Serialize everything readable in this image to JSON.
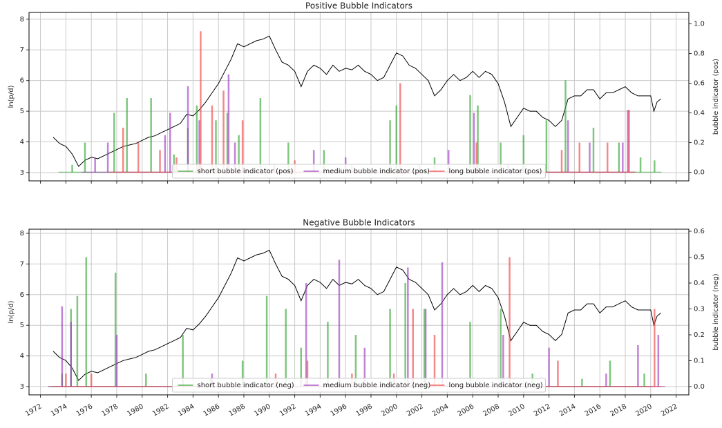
{
  "chart_data": [
    {
      "type": "line",
      "title": "Positive Bubble Indicators",
      "ylabel": "ln(p/d)",
      "y2label": "bubble indicator (pos)",
      "grid": true,
      "show_xtick_labels": false,
      "legend": "lower center",
      "xlim": [
        1971.1,
        2023.0
      ],
      "xticks": [
        1972,
        1974,
        1976,
        1978,
        1980,
        1982,
        1984,
        1986,
        1988,
        1990,
        1992,
        1994,
        1996,
        1998,
        2000,
        2002,
        2004,
        2006,
        2008,
        2010,
        2012,
        2014,
        2016,
        2018,
        2020,
        2022
      ],
      "ylim": [
        2.73,
        8.22
      ],
      "yticks": [
        3,
        4,
        5,
        6,
        7,
        8
      ],
      "y2lim": [
        -0.058,
        1.077
      ],
      "y2ticks": [
        {
          "value": 0,
          "label": "0.0"
        },
        0.2,
        0.4,
        0.6,
        0.8,
        {
          "value": 1,
          "label": "1.0"
        }
      ],
      "series": [
        {
          "color": "#000000",
          "style": "line",
          "x": [
            1973.0,
            1973.5,
            1974.0,
            1974.5,
            1975.0,
            1975.5,
            1976.0,
            1976.5,
            1977.0,
            1977.5,
            1978.0,
            1978.5,
            1979.0,
            1979.5,
            1980.0,
            1980.5,
            1981.0,
            1981.5,
            1982.0,
            1982.5,
            1983.0,
            1983.5,
            1984.0,
            1984.5,
            1985.0,
            1985.5,
            1986.0,
            1986.5,
            1987.0,
            1987.5,
            1988.0,
            1988.5,
            1989.0,
            1989.5,
            1990.0,
            1990.5,
            1991.0,
            1991.5,
            1992.0,
            1992.5,
            1993.0,
            1993.5,
            1994.0,
            1994.5,
            1995.0,
            1995.5,
            1996.0,
            1996.5,
            1997.0,
            1997.5,
            1998.0,
            1998.5,
            1999.0,
            1999.5,
            2000.0,
            2000.5,
            2001.0,
            2001.5,
            2002.0,
            2002.5,
            2003.0,
            2003.5,
            2004.0,
            2004.5,
            2005.0,
            2005.5,
            2006.0,
            2006.5,
            2007.0,
            2007.5,
            2008.0,
            2008.5,
            2009.0,
            2009.5,
            2010.0,
            2010.5,
            2011.0,
            2011.5,
            2012.0,
            2012.5,
            2013.0,
            2013.5,
            2014.0,
            2014.5,
            2015.0,
            2015.5,
            2016.0,
            2016.5,
            2017.0,
            2017.5,
            2018.0,
            2018.5,
            2019.0,
            2019.5,
            2020.0,
            2020.25,
            2020.5,
            2020.8
          ],
          "values": [
            4.15,
            3.95,
            3.85,
            3.6,
            3.2,
            3.4,
            3.5,
            3.45,
            3.55,
            3.65,
            3.75,
            3.85,
            3.9,
            3.95,
            4.05,
            4.15,
            4.2,
            4.3,
            4.4,
            4.5,
            4.6,
            4.9,
            4.85,
            5.05,
            5.3,
            5.6,
            5.9,
            6.3,
            6.7,
            7.2,
            7.1,
            7.2,
            7.3,
            7.35,
            7.45,
            7.0,
            6.6,
            6.5,
            6.3,
            5.8,
            6.3,
            6.5,
            6.4,
            6.2,
            6.5,
            6.3,
            6.4,
            6.35,
            6.5,
            6.3,
            6.2,
            6.0,
            6.1,
            6.5,
            6.9,
            6.8,
            6.5,
            6.4,
            6.2,
            6.0,
            5.5,
            5.7,
            6.0,
            6.2,
            6.0,
            6.1,
            6.3,
            6.1,
            6.3,
            6.2,
            5.9,
            5.3,
            4.5,
            4.8,
            5.1,
            5.0,
            5.0,
            4.8,
            4.7,
            4.5,
            4.7,
            5.4,
            5.5,
            5.5,
            5.7,
            5.7,
            5.4,
            5.6,
            5.6,
            5.7,
            5.8,
            5.6,
            5.5,
            5.5,
            5.5,
            5.0,
            5.3,
            5.4
          ]
        },
        {
          "name": "short bubble indicator (pos)",
          "color": "#3aa83a",
          "style": "spikes",
          "axis": "y2",
          "x": [
            1974.5,
            1975.5,
            1977.8,
            1978.8,
            1980.7,
            1982.5,
            1983.6,
            1984.3,
            1985.8,
            1986.7,
            1987.6,
            1989.3,
            1991.5,
            1994.3,
            1999.5,
            2000.0,
            2003.0,
            2005.8,
            2006.4,
            2008.2,
            2010.0,
            2011.8,
            2013.3,
            2015.5,
            2017.5,
            2019.2,
            2020.3
          ],
          "values": [
            0.05,
            0.2,
            0.4,
            0.5,
            0.5,
            0.12,
            0.3,
            0.45,
            0.35,
            0.4,
            0.25,
            0.5,
            0.2,
            0.15,
            0.35,
            0.45,
            0.1,
            0.52,
            0.45,
            0.2,
            0.25,
            0.35,
            0.62,
            0.3,
            0.2,
            0.1,
            0.08
          ]
        },
        {
          "name": "medium bubble indicator (pos)",
          "color": "#a040c0",
          "style": "spikes",
          "axis": "y2",
          "x": [
            1976.3,
            1977.3,
            1981.8,
            1982.2,
            1983.6,
            1984.5,
            1986.8,
            1987.3,
            1990.4,
            1993.5,
            1996.0,
            2001.8,
            2004.1,
            2006.1,
            2008.8,
            2013.5,
            2015.2,
            2017.8,
            2018.2
          ],
          "values": [
            0.1,
            0.2,
            0.25,
            0.4,
            0.58,
            0.35,
            0.66,
            0.2,
            0.05,
            0.15,
            0.1,
            0.05,
            0.15,
            0.4,
            0.05,
            0.35,
            0.2,
            0.2,
            0.42
          ]
        },
        {
          "name": "long bubble indicator (pos)",
          "color": "#f04848",
          "style": "spikes",
          "axis": "y2",
          "x": [
            1978.5,
            1979.7,
            1981.4,
            1982.7,
            1984.6,
            1985.5,
            1986.4,
            1987.9,
            1992.0,
            1996.5,
            2000.3,
            2006.3,
            2013.0,
            2014.4,
            2016.6,
            2018.3
          ],
          "values": [
            0.3,
            0.2,
            0.15,
            0.1,
            0.95,
            0.45,
            0.55,
            0.35,
            0.08,
            0.05,
            0.6,
            0.2,
            0.15,
            0.2,
            0.2,
            0.42
          ]
        }
      ]
    },
    {
      "type": "line",
      "title": "Negative Bubble Indicators",
      "ylabel": "ln(p/d)",
      "y2label": "bubble indicator (neg)",
      "grid": true,
      "show_xtick_labels": true,
      "legend": "lower center",
      "xlim": [
        1971.1,
        2023.0
      ],
      "xticks": [
        1972,
        1974,
        1976,
        1978,
        1980,
        1982,
        1984,
        1986,
        1988,
        1990,
        1992,
        1994,
        1996,
        1998,
        2000,
        2002,
        2004,
        2006,
        2008,
        2010,
        2012,
        2014,
        2016,
        2018,
        2020,
        2022
      ],
      "ylim": [
        2.73,
        8.135
      ],
      "yticks": [
        3,
        4,
        5,
        6,
        7,
        8
      ],
      "y2lim": [
        -0.032,
        0.608
      ],
      "y2ticks": [
        {
          "value": 0,
          "label": "0.0"
        },
        0.1,
        0.2,
        0.3,
        0.4,
        0.5,
        0.6
      ],
      "series": [
        {
          "color": "#000000",
          "style": "line",
          "x": [
            1973.0,
            1973.5,
            1974.0,
            1974.5,
            1975.0,
            1975.5,
            1976.0,
            1976.5,
            1977.0,
            1977.5,
            1978.0,
            1978.5,
            1979.0,
            1979.5,
            1980.0,
            1980.5,
            1981.0,
            1981.5,
            1982.0,
            1982.5,
            1983.0,
            1983.5,
            1984.0,
            1984.5,
            1985.0,
            1985.5,
            1986.0,
            1986.5,
            1987.0,
            1987.5,
            1988.0,
            1988.5,
            1989.0,
            1989.5,
            1990.0,
            1990.5,
            1991.0,
            1991.5,
            1992.0,
            1992.5,
            1993.0,
            1993.5,
            1994.0,
            1994.5,
            1995.0,
            1995.5,
            1996.0,
            1996.5,
            1997.0,
            1997.5,
            1998.0,
            1998.5,
            1999.0,
            1999.5,
            2000.0,
            2000.5,
            2001.0,
            2001.5,
            2002.0,
            2002.5,
            2003.0,
            2003.5,
            2004.0,
            2004.5,
            2005.0,
            2005.5,
            2006.0,
            2006.5,
            2007.0,
            2007.5,
            2008.0,
            2008.5,
            2009.0,
            2009.5,
            2010.0,
            2010.5,
            2011.0,
            2011.5,
            2012.0,
            2012.5,
            2013.0,
            2013.5,
            2014.0,
            2014.5,
            2015.0,
            2015.5,
            2016.0,
            2016.5,
            2017.0,
            2017.5,
            2018.0,
            2018.5,
            2019.0,
            2019.5,
            2020.0,
            2020.25,
            2020.5,
            2020.8
          ],
          "values": [
            4.15,
            3.95,
            3.85,
            3.6,
            3.2,
            3.4,
            3.5,
            3.45,
            3.55,
            3.65,
            3.75,
            3.85,
            3.9,
            3.95,
            4.05,
            4.15,
            4.2,
            4.3,
            4.4,
            4.5,
            4.6,
            4.9,
            4.85,
            5.05,
            5.3,
            5.6,
            5.9,
            6.3,
            6.7,
            7.2,
            7.1,
            7.2,
            7.3,
            7.35,
            7.45,
            7.0,
            6.6,
            6.5,
            6.3,
            5.8,
            6.3,
            6.5,
            6.4,
            6.2,
            6.5,
            6.3,
            6.4,
            6.35,
            6.5,
            6.3,
            6.2,
            6.0,
            6.1,
            6.5,
            6.9,
            6.8,
            6.5,
            6.4,
            6.2,
            6.0,
            5.5,
            5.7,
            6.0,
            6.2,
            6.0,
            6.1,
            6.3,
            6.1,
            6.3,
            6.2,
            5.9,
            5.3,
            4.5,
            4.8,
            5.1,
            5.0,
            5.0,
            4.8,
            4.7,
            4.5,
            4.7,
            5.4,
            5.5,
            5.5,
            5.7,
            5.7,
            5.4,
            5.6,
            5.6,
            5.7,
            5.8,
            5.6,
            5.5,
            5.5,
            5.5,
            5.0,
            5.3,
            5.4
          ]
        },
        {
          "name": "short bubble indicator (neg)",
          "color": "#3aa83a",
          "style": "spikes",
          "axis": "y2",
          "x": [
            1973.7,
            1974.4,
            1974.9,
            1975.6,
            1977.9,
            1980.3,
            1983.2,
            1985.4,
            1987.9,
            1989.8,
            1991.3,
            1992.5,
            1994.6,
            1996.8,
            1999.5,
            2000.7,
            2002.2,
            2005.8,
            2008.2,
            2010.7,
            2014.6,
            2016.8,
            2019.5
          ],
          "values": [
            0.05,
            0.3,
            0.35,
            0.5,
            0.44,
            0.05,
            0.2,
            0.03,
            0.1,
            0.35,
            0.3,
            0.15,
            0.25,
            0.2,
            0.3,
            0.4,
            0.3,
            0.25,
            0.3,
            0.05,
            0.03,
            0.1,
            0.05
          ]
        },
        {
          "name": "medium bubble indicator (neg)",
          "color": "#a040c0",
          "style": "spikes",
          "axis": "y2",
          "x": [
            1973.7,
            1974.4,
            1978.0,
            1985.5,
            1992.9,
            1995.5,
            1997.5,
            2000.9,
            2002.3,
            2003.6,
            2008.4,
            2012.0,
            2016.5,
            2019.0,
            2020.6
          ],
          "values": [
            0.31,
            0.25,
            0.2,
            0.05,
            0.4,
            0.49,
            0.15,
            0.46,
            0.3,
            0.48,
            0.2,
            0.15,
            0.05,
            0.16,
            0.2
          ]
        },
        {
          "name": "long bubble indicator (neg)",
          "color": "#f04848",
          "style": "spikes",
          "axis": "y2",
          "x": [
            1974.0,
            1976.0,
            1990.5,
            1993.0,
            1996.5,
            1999.8,
            2001.3,
            2003.0,
            2008.9,
            2012.7,
            2020.3
          ],
          "values": [
            0.05,
            0.05,
            0.05,
            0.1,
            0.05,
            0.05,
            0.3,
            0.2,
            0.5,
            0.1,
            0.3
          ]
        }
      ]
    }
  ]
}
